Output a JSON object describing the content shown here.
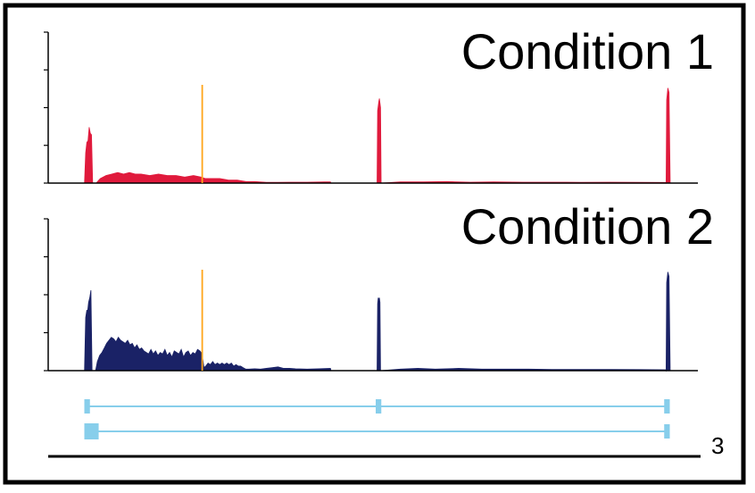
{
  "chart_data": {
    "type": "area",
    "x_unit": "relative genomic position (0 = left end of gene model, 1000 = right end)",
    "y_unit": "relative coverage (0-100, axis has 4 unlabeled ticks)",
    "ylim": [
      0,
      100
    ],
    "grid": false,
    "marker_x": 200,
    "marker_color": "#ffa51a",
    "panels": [
      {
        "title": "Condition 1",
        "color": "#e01a3c",
        "points": [
          [
            -2,
            0
          ],
          [
            0,
            20
          ],
          [
            2,
            27
          ],
          [
            4,
            28
          ],
          [
            6,
            37
          ],
          [
            8,
            33
          ],
          [
            10,
            32
          ],
          [
            12,
            0
          ],
          [
            18,
            0
          ],
          [
            25,
            3
          ],
          [
            35,
            5
          ],
          [
            45,
            6
          ],
          [
            55,
            7
          ],
          [
            65,
            6
          ],
          [
            75,
            7
          ],
          [
            85,
            6
          ],
          [
            95,
            6
          ],
          [
            110,
            5
          ],
          [
            125,
            6
          ],
          [
            140,
            5
          ],
          [
            155,
            5
          ],
          [
            170,
            4
          ],
          [
            185,
            5
          ],
          [
            198,
            4
          ],
          [
            205,
            3
          ],
          [
            215,
            3
          ],
          [
            230,
            3
          ],
          [
            245,
            2
          ],
          [
            260,
            2
          ],
          [
            275,
            1
          ],
          [
            290,
            1
          ],
          [
            310,
            0.5
          ],
          [
            330,
            0.5
          ],
          [
            350,
            0.6
          ],
          [
            380,
            0.6
          ],
          [
            410,
            0.8
          ],
          [
            420,
            0.8
          ],
          [
            421,
            0
          ],
          [
            500,
            0
          ],
          [
            501,
            48
          ],
          [
            503,
            54
          ],
          [
            504,
            56
          ],
          [
            506,
            50
          ],
          [
            507,
            0
          ],
          [
            540,
            0.8
          ],
          [
            580,
            0.8
          ],
          [
            620,
            1
          ],
          [
            660,
            0.6
          ],
          [
            700,
            0.8
          ],
          [
            750,
            0.6
          ],
          [
            800,
            0.6
          ],
          [
            850,
            0.5
          ],
          [
            900,
            0.6
          ],
          [
            950,
            0.5
          ],
          [
            995,
            0.4
          ],
          [
            996,
            0
          ],
          [
            997,
            55
          ],
          [
            999,
            63
          ],
          [
            1001,
            60
          ],
          [
            1003,
            0
          ]
        ]
      },
      {
        "title": "Condition 2",
        "color": "#1a2266",
        "points": [
          [
            -2,
            0
          ],
          [
            0,
            35
          ],
          [
            2,
            40
          ],
          [
            3,
            38
          ],
          [
            5,
            45
          ],
          [
            7,
            48
          ],
          [
            9,
            53
          ],
          [
            11,
            0
          ],
          [
            17,
            0
          ],
          [
            20,
            6
          ],
          [
            24,
            10
          ],
          [
            28,
            12
          ],
          [
            32,
            15
          ],
          [
            36,
            18
          ],
          [
            40,
            20
          ],
          [
            44,
            22
          ],
          [
            48,
            21
          ],
          [
            52,
            19
          ],
          [
            56,
            22
          ],
          [
            60,
            20
          ],
          [
            64,
            19
          ],
          [
            68,
            18
          ],
          [
            72,
            20
          ],
          [
            76,
            17
          ],
          [
            80,
            18
          ],
          [
            84,
            15
          ],
          [
            88,
            17
          ],
          [
            92,
            14
          ],
          [
            96,
            15
          ],
          [
            100,
            13
          ],
          [
            104,
            12
          ],
          [
            108,
            11
          ],
          [
            112,
            14
          ],
          [
            116,
            11
          ],
          [
            120,
            13
          ],
          [
            124,
            10
          ],
          [
            128,
            12
          ],
          [
            132,
            11
          ],
          [
            136,
            14
          ],
          [
            140,
            10
          ],
          [
            144,
            12
          ],
          [
            148,
            9
          ],
          [
            152,
            13
          ],
          [
            156,
            12
          ],
          [
            160,
            11
          ],
          [
            164,
            14
          ],
          [
            168,
            9
          ],
          [
            172,
            12
          ],
          [
            176,
            13
          ],
          [
            180,
            10
          ],
          [
            184,
            12
          ],
          [
            188,
            11
          ],
          [
            192,
            14
          ],
          [
            196,
            13
          ],
          [
            198,
            12
          ],
          [
            200,
            10
          ],
          [
            203,
            2
          ],
          [
            206,
            3
          ],
          [
            210,
            5
          ],
          [
            214,
            4
          ],
          [
            218,
            6
          ],
          [
            222,
            4
          ],
          [
            226,
            5
          ],
          [
            230,
            4
          ],
          [
            234,
            5
          ],
          [
            238,
            4
          ],
          [
            242,
            5
          ],
          [
            246,
            4
          ],
          [
            250,
            5
          ],
          [
            254,
            3
          ],
          [
            258,
            4
          ],
          [
            262,
            3
          ],
          [
            266,
            3
          ],
          [
            270,
            2
          ],
          [
            275,
            1
          ],
          [
            280,
            1
          ],
          [
            290,
            1.2
          ],
          [
            300,
            1
          ],
          [
            310,
            1.5
          ],
          [
            320,
            2
          ],
          [
            330,
            2.5
          ],
          [
            340,
            1.5
          ],
          [
            350,
            1.5
          ],
          [
            360,
            1.2
          ],
          [
            380,
            1
          ],
          [
            400,
            1.2
          ],
          [
            420,
            1.5
          ],
          [
            421,
            0
          ],
          [
            500,
            0
          ],
          [
            501,
            44
          ],
          [
            502,
            48
          ],
          [
            503,
            47
          ],
          [
            504,
            48
          ],
          [
            505,
            45
          ],
          [
            506,
            0
          ],
          [
            540,
            1
          ],
          [
            570,
            1.5
          ],
          [
            600,
            1
          ],
          [
            640,
            1.5
          ],
          [
            680,
            1
          ],
          [
            720,
            1
          ],
          [
            760,
            1
          ],
          [
            800,
            0.8
          ],
          [
            850,
            0.8
          ],
          [
            900,
            0.8
          ],
          [
            950,
            0.7
          ],
          [
            995,
            0.6
          ],
          [
            996,
            0
          ],
          [
            997,
            58
          ],
          [
            999,
            65
          ],
          [
            1001,
            62
          ],
          [
            1003,
            0
          ]
        ]
      }
    ],
    "gene_models": {
      "color": "#87ceeb",
      "transcripts": [
        {
          "start": 0,
          "end": 1000,
          "exons": [
            [
              0,
              5
            ],
            [
              500,
              505
            ],
            [
              995,
              1000
            ]
          ]
        },
        {
          "start": 0,
          "end": 1000,
          "exons": [
            [
              0,
              20
            ],
            [
              995,
              1000
            ]
          ]
        }
      ]
    },
    "scale_label": "3"
  }
}
